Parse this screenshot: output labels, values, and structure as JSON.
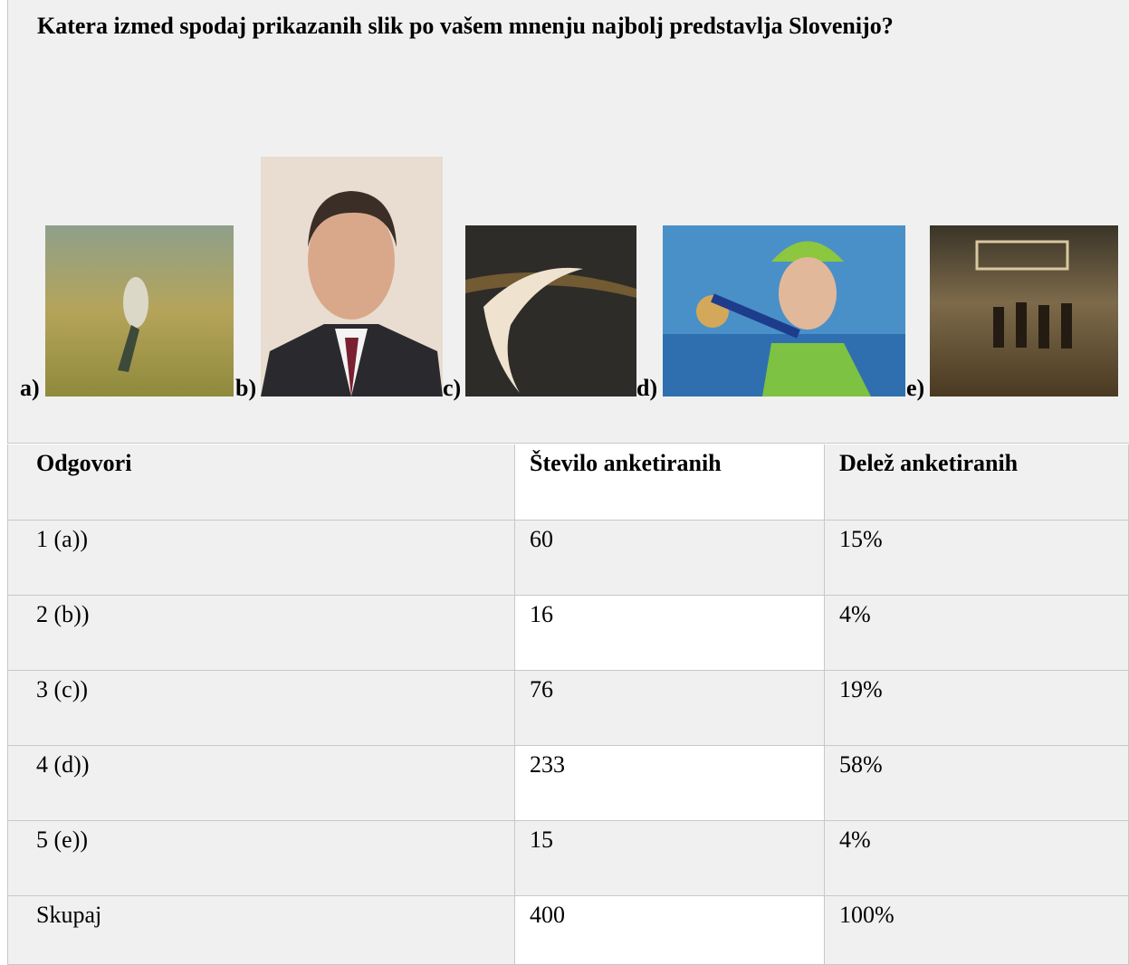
{
  "question": "Katera izmed spodaj prikazanih slik po vašem mnenju najbolj predstavlja Slovenijo?",
  "labels": [
    "a)",
    "b)",
    "c)",
    "d)",
    "e)"
  ],
  "table": {
    "header": [
      "Odgovori",
      "Število anketiranih",
      "Delež anketiranih"
    ],
    "rows": [
      [
        "1 (a))",
        "60",
        "15%"
      ],
      [
        "2 (b))",
        "16",
        "4%"
      ],
      [
        "3 (c))",
        "76",
        "19%"
      ],
      [
        "4 (d))",
        "233",
        "58%"
      ],
      [
        "5 (e))",
        "15",
        "4%"
      ],
      [
        "Skupaj",
        "400",
        "100%"
      ]
    ]
  }
}
